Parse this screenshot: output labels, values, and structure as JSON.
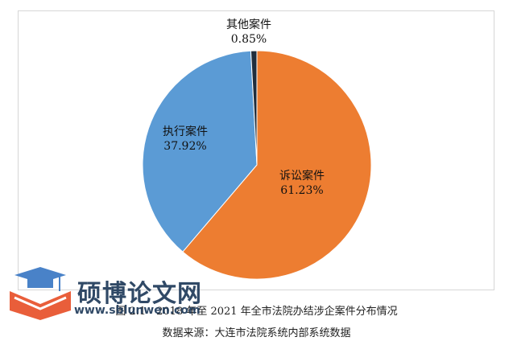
{
  "chart_data": {
    "type": "pie",
    "slices": [
      {
        "name": "诉讼案件",
        "value": 61.23,
        "label": "61.23%",
        "color": "#ed7d31"
      },
      {
        "name": "执行案件",
        "value": 37.92,
        "label": "37.92%",
        "color": "#5b9bd5"
      },
      {
        "name": "其他案件",
        "value": 0.85,
        "label": "0.85%",
        "color": "#1f2d3d"
      }
    ]
  },
  "caption": {
    "figure": "图 2.1　2018 年至 2021 年全市法院办结涉企案件分布情况",
    "source": "数据来源：大连市法院系统内部系统数据"
  },
  "watermark": {
    "text": "硕博论文网",
    "url": "www.sblunwen.com",
    "colors": {
      "cap": "#3a78c4",
      "book": "#e8512a"
    }
  }
}
